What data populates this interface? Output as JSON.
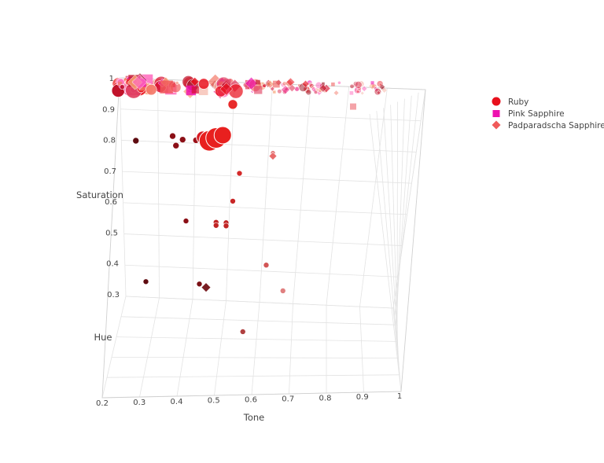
{
  "chart_data": {
    "type": "scatter3d",
    "axes": {
      "x": {
        "title": "Tone",
        "ticks": [
          "0.2",
          "0.3",
          "0.4",
          "0.5",
          "0.6",
          "0.7",
          "0.8",
          "0.9",
          "1"
        ],
        "range": [
          0.2,
          1
        ]
      },
      "y": {
        "title": "Hue",
        "ticks": []
      },
      "z": {
        "title": "Saturation",
        "ticks": [
          "0.3",
          "0.4",
          "0.5",
          "0.6",
          "0.7",
          "0.8",
          "0.9",
          "1"
        ],
        "range": [
          0.3,
          1
        ]
      }
    },
    "legend": {
      "placement": "top-right",
      "items": [
        {
          "name": "Ruby",
          "symbol": "circle",
          "color": "#e8101c"
        },
        {
          "name": "Pink Sapphire",
          "symbol": "square",
          "color": "#ee12b0"
        },
        {
          "name": "Padparadscha Sapphire",
          "symbol": "diamond",
          "color": "#f05a5a"
        }
      ]
    },
    "series": [
      {
        "name": "Ruby",
        "symbol": "circle",
        "points": [
          {
            "tone": 0.34,
            "sat": 0.82,
            "size": 4,
            "color": "#8b0f16"
          },
          {
            "tone": 0.35,
            "sat": 0.79,
            "size": 4,
            "color": "#8b0f16"
          },
          {
            "tone": 0.37,
            "sat": 0.81,
            "size": 4,
            "color": "#8b0f16"
          },
          {
            "tone": 0.23,
            "sat": 0.8,
            "size": 4,
            "color": "#5e0b10"
          },
          {
            "tone": 0.41,
            "sat": 0.81,
            "size": 4,
            "color": "#9a1018"
          },
          {
            "tone": 0.43,
            "sat": 0.82,
            "size": 8,
            "color": "#d81a22"
          },
          {
            "tone": 0.45,
            "sat": 0.81,
            "size": 13,
            "color": "#e8201f"
          },
          {
            "tone": 0.47,
            "sat": 0.82,
            "size": 13,
            "color": "#e8201f"
          },
          {
            "tone": 0.49,
            "sat": 0.83,
            "size": 11,
            "color": "#e8201f"
          },
          {
            "tone": 0.52,
            "sat": 0.93,
            "size": 6,
            "color": "#e82a2a"
          },
          {
            "tone": 0.54,
            "sat": 0.71,
            "size": 3.5,
            "color": "#d42a2a"
          },
          {
            "tone": 0.52,
            "sat": 0.62,
            "size": 3.5,
            "color": "#c82626"
          },
          {
            "tone": 0.38,
            "sat": 0.55,
            "size": 3.5,
            "color": "#8b0f16"
          },
          {
            "tone": 0.47,
            "sat": 0.55,
            "size": 3.5,
            "color": "#c02424"
          },
          {
            "tone": 0.47,
            "sat": 0.54,
            "size": 3.5,
            "color": "#c02424"
          },
          {
            "tone": 0.5,
            "sat": 0.55,
            "size": 3.5,
            "color": "#c02424"
          },
          {
            "tone": 0.5,
            "sat": 0.54,
            "size": 3.5,
            "color": "#c02424"
          },
          {
            "tone": 0.62,
            "sat": 0.42,
            "size": 3.5,
            "color": "#d25555"
          },
          {
            "tone": 0.67,
            "sat": 0.34,
            "size": 3.5,
            "color": "#e08080"
          },
          {
            "tone": 0.26,
            "sat": 0.35,
            "size": 3.5,
            "color": "#5e0b10"
          },
          {
            "tone": 0.42,
            "sat": 0.35,
            "size": 3.5,
            "color": "#7a1015"
          },
          {
            "tone": 0.55,
            "sat": 0.14,
            "size": 3.5,
            "color": "#b04040"
          },
          {
            "tone": 0.64,
            "sat": 0.78,
            "size": 3,
            "color": "#e07070"
          }
        ]
      },
      {
        "name": "Padparadscha Sapphire",
        "symbol": "diamond",
        "points": [
          {
            "tone": 0.64,
            "sat": 0.77,
            "size": 5,
            "color": "#e86a6a"
          },
          {
            "tone": 0.44,
            "sat": 0.34,
            "size": 6,
            "color": "#7a1f24"
          },
          {
            "tone": 0.19,
            "sat": 0.97,
            "size": 6,
            "color": "#6e4110"
          }
        ]
      },
      {
        "name": "Pink Sapphire",
        "symbol": "square",
        "points": [
          {
            "tone": 0.88,
            "sat": 0.94,
            "size": 4,
            "color": "#f4a3a8"
          }
        ]
      }
    ]
  }
}
